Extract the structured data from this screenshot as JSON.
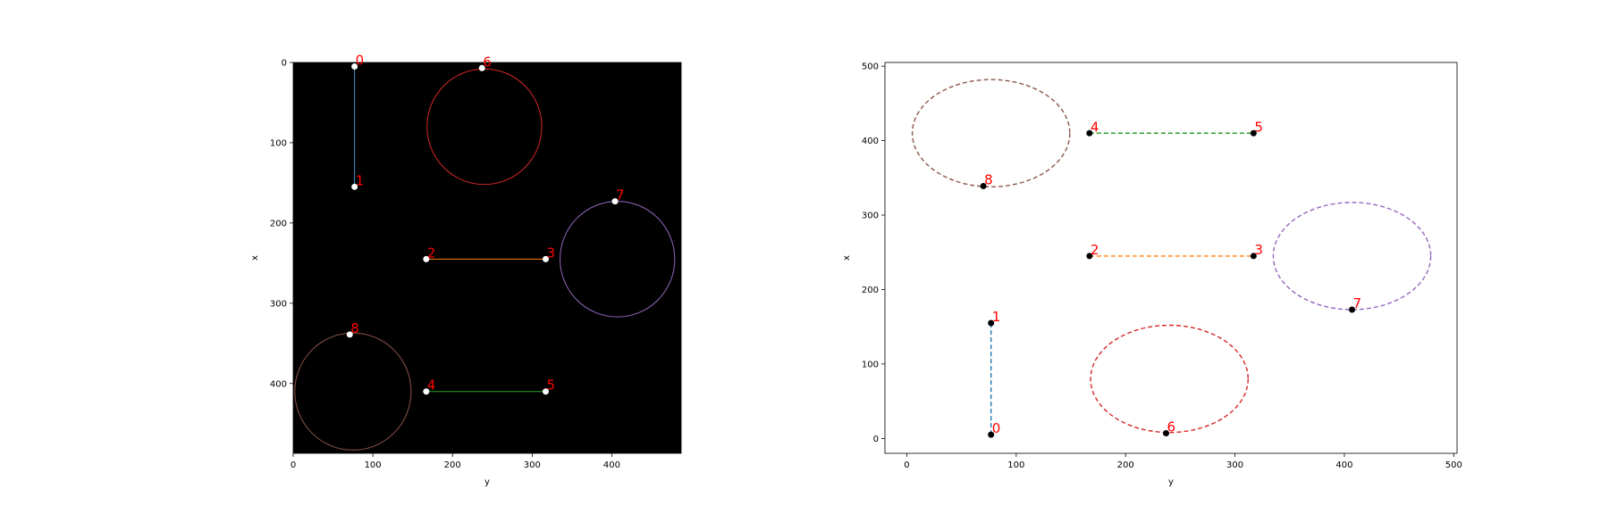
{
  "chart_data": [
    {
      "type": "scatter",
      "panel": "image",
      "xlabel": "y",
      "ylabel": "x",
      "xlim": [
        0,
        487
      ],
      "ylim": [
        0,
        487
      ],
      "y_inverted": true,
      "background": "#000000",
      "point_color": "#ffffff",
      "xticks": [
        "0",
        "100",
        "200",
        "300",
        "400"
      ],
      "yticks": [
        "0",
        "100",
        "200",
        "300",
        "400"
      ],
      "points": [
        {
          "label": "0",
          "y": 77,
          "x": 5
        },
        {
          "label": "1",
          "y": 77,
          "x": 155
        },
        {
          "label": "2",
          "y": 167,
          "x": 245
        },
        {
          "label": "3",
          "y": 317,
          "x": 245
        },
        {
          "label": "4",
          "y": 167,
          "x": 410
        },
        {
          "label": "5",
          "y": 317,
          "x": 410
        },
        {
          "label": "6",
          "y": 237,
          "x": 7
        },
        {
          "label": "7",
          "y": 404,
          "x": 173
        },
        {
          "label": "8",
          "y": 71,
          "x": 339
        }
      ],
      "segments": [
        {
          "from": "0",
          "to": "1",
          "color": "#4a90c0"
        },
        {
          "from": "2",
          "to": "3",
          "color": "#ff7f0e"
        },
        {
          "from": "4",
          "to": "5",
          "color": "#2ca02c"
        }
      ],
      "circles": [
        {
          "cy": 240,
          "cx": 80,
          "r": 72,
          "color": "#d62728"
        },
        {
          "cy": 407,
          "cx": 245,
          "r": 72,
          "color": "#9467bd"
        },
        {
          "cy": 75,
          "cx": 410,
          "r": 73,
          "color": "#8c564b"
        }
      ]
    },
    {
      "type": "scatter",
      "panel": "plot",
      "xlabel": "y",
      "ylabel": "x",
      "xlim": [
        -20,
        503
      ],
      "ylim": [
        -20,
        505
      ],
      "point_color": "#000000",
      "xticks": [
        "0",
        "100",
        "200",
        "300",
        "400",
        "500"
      ],
      "yticks": [
        "0",
        "100",
        "200",
        "300",
        "400",
        "500"
      ],
      "points": [
        {
          "label": "0",
          "y": 77,
          "x": 5
        },
        {
          "label": "1",
          "y": 77,
          "x": 155
        },
        {
          "label": "2",
          "y": 167,
          "x": 245
        },
        {
          "label": "3",
          "y": 317,
          "x": 245
        },
        {
          "label": "4",
          "y": 167,
          "x": 410
        },
        {
          "label": "5",
          "y": 317,
          "x": 410
        },
        {
          "label": "6",
          "y": 237,
          "x": 7
        },
        {
          "label": "7",
          "y": 407,
          "x": 173
        },
        {
          "label": "8",
          "y": 70,
          "x": 339
        }
      ],
      "segments": [
        {
          "from": "0",
          "to": "1",
          "color": "#1f77b4"
        },
        {
          "from": "2",
          "to": "3",
          "color": "#ff7f0e"
        },
        {
          "from": "4",
          "to": "5",
          "color": "#2ca02c"
        }
      ],
      "circles": [
        {
          "cy": 240,
          "cx": 80,
          "r": 72,
          "color": "#d62728"
        },
        {
          "cy": 407,
          "cx": 245,
          "r": 72,
          "color": "#9467bd"
        },
        {
          "cy": 77,
          "cx": 410,
          "r": 72,
          "color": "#8c564b"
        }
      ]
    }
  ]
}
